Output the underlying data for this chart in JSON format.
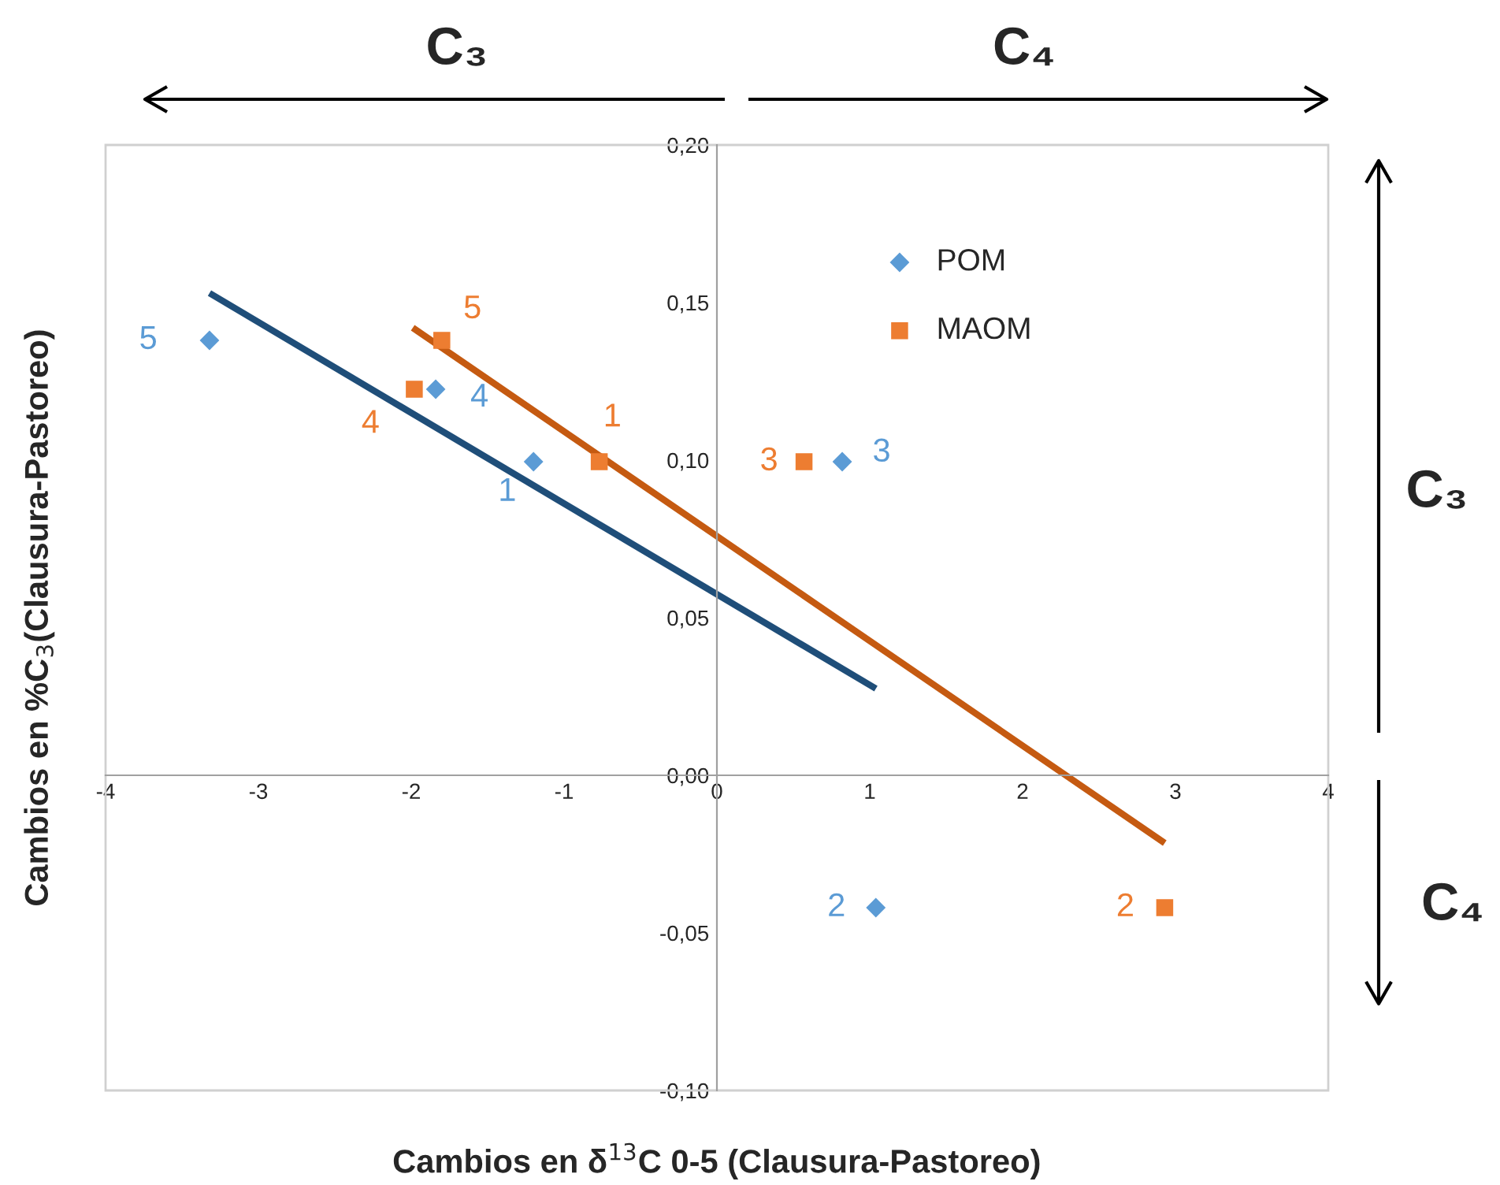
{
  "chart_data": {
    "type": "scatter",
    "xlabel": "Cambios en δ$^{13}$C 0-5 (Clausura-Pastoreo)",
    "ylabel": "Cambios en %C$_{3}$(Clausura-Pastoreo)",
    "xlim": [
      -4,
      4
    ],
    "xticks": [
      -4,
      -3,
      -2,
      -1,
      0,
      1,
      2,
      3,
      4
    ],
    "ylim": [
      -0.1,
      0.2
    ],
    "yticks": [
      {
        "value": -0.1,
        "label": "-0,10"
      },
      {
        "value": -0.05,
        "label": "-0,05"
      },
      {
        "value": 0.0,
        "label": "0,00"
      },
      {
        "value": 0.05,
        "label": "0,05"
      },
      {
        "value": 0.1,
        "label": "0,10"
      },
      {
        "value": 0.15,
        "label": "0,15"
      },
      {
        "value": 0.2,
        "label": "0,20"
      }
    ],
    "grid": false,
    "legend": "top right",
    "annotations": [
      "C₃",
      "C₄",
      "C₃",
      "C₄",
      {
        "text": "1",
        "x": -1.2,
        "y": 0.0995
      },
      {
        "text": "2",
        "x": 1.04,
        "y": -0.042
      },
      {
        "text": "3",
        "x": 0.82,
        "y": 0.0995
      },
      {
        "text": "4",
        "x": -1.84,
        "y": 0.1225
      },
      {
        "text": "5",
        "x": -3.32,
        "y": 0.138
      },
      {
        "text": "1",
        "x": -0.77,
        "y": 0.0995
      },
      {
        "text": "2",
        "x": 2.93,
        "y": -0.042
      },
      {
        "text": "3",
        "x": 0.57,
        "y": 0.0995
      },
      {
        "text": "4",
        "x": -1.98,
        "y": 0.1225
      },
      {
        "text": "5",
        "x": -1.8,
        "y": 0.138
      }
    ],
    "series": [
      {
        "name": "POM",
        "marker": "diamond",
        "color": "#5b9bd5",
        "x": [
          -1.2,
          1.04,
          0.82,
          -1.84,
          -3.32
        ],
        "values": [
          0.0995,
          -0.042,
          0.0995,
          0.1225,
          0.138
        ]
      },
      {
        "name": "MAOM",
        "marker": "square",
        "color": "#ed7d31",
        "x": [
          -0.77,
          2.93,
          0.57,
          -1.98,
          -1.8
        ],
        "values": [
          0.0995,
          -0.042,
          0.0995,
          0.1225,
          0.138
        ]
      },
      {
        "type": "line",
        "color": "#1f4e79",
        "x": [
          -3.32,
          1.04
        ],
        "values": [
          0.153,
          0.0275
        ]
      },
      {
        "type": "line",
        "color": "#c55a11",
        "x": [
          -1.99,
          2.93
        ],
        "values": [
          0.142,
          -0.0215
        ]
      }
    ]
  }
}
